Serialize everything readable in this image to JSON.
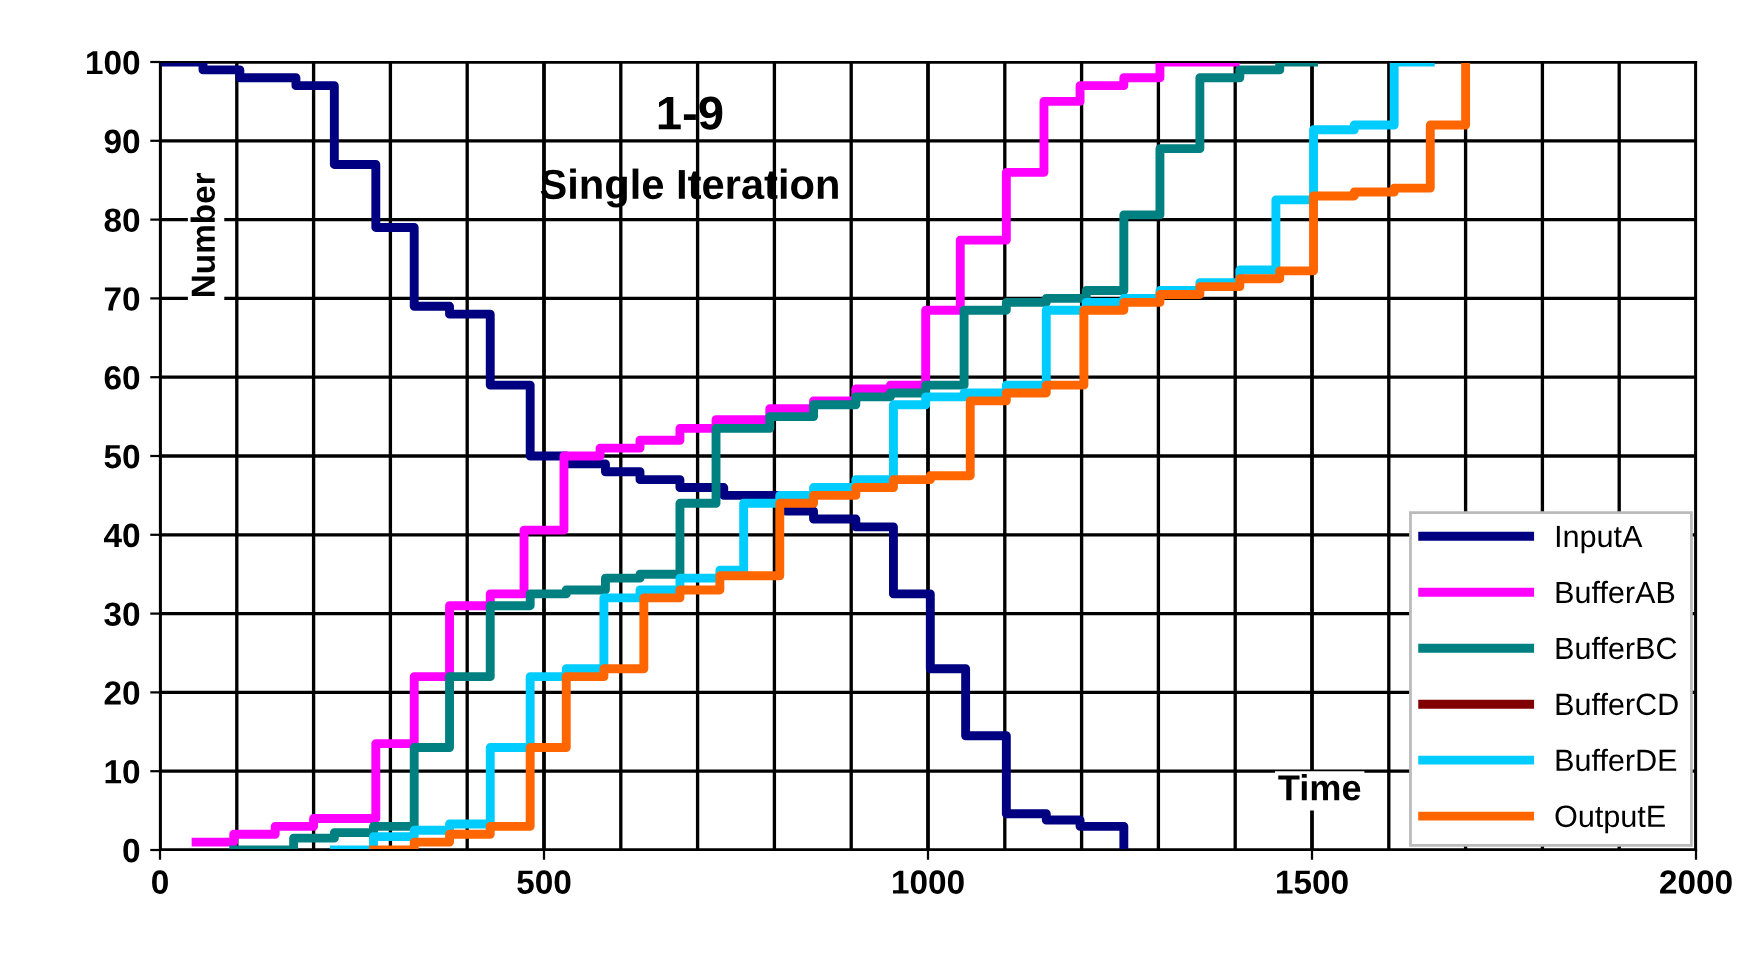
{
  "chart_data": {
    "type": "step",
    "title": "1-9",
    "subtitle": "Single Iteration",
    "xlabel": "Time",
    "ylabel": "Number",
    "xlim": [
      0,
      2000
    ],
    "xticks": [
      0,
      500,
      1000,
      1500,
      2000
    ],
    "ylim": [
      0,
      100
    ],
    "yticks": [
      0,
      10,
      20,
      30,
      40,
      50,
      60,
      70,
      80,
      90,
      100
    ],
    "grid": true,
    "legend": "bottom right",
    "marker": "none",
    "line_style": "solid",
    "series": [
      {
        "name": "InputA",
        "color": "#000080",
        "x": [
          0,
          56,
          104,
          177,
          227,
          281,
          331,
          377,
          430,
          482,
          529,
          580,
          625,
          677,
          734,
          815,
          851,
          906,
          955,
          1003,
          1049,
          1102,
          1154,
          1198,
          1255
        ],
        "values": [
          100,
          99,
          98,
          97,
          87,
          79,
          69,
          68,
          59,
          50,
          49,
          48,
          47,
          46,
          45,
          43,
          42,
          41,
          32.5,
          23,
          14.5,
          4.6,
          3.8,
          3,
          0
        ]
      },
      {
        "name": "BufferAB",
        "color": "#ff00ff",
        "x": [
          47,
          96,
          150,
          200,
          281,
          331,
          377,
          430,
          474,
          526,
          573,
          625,
          677,
          724,
          794,
          851,
          906,
          951,
          997,
          1042,
          1102,
          1151,
          1198,
          1255,
          1302,
          1400
        ],
        "values": [
          1,
          2,
          3,
          4,
          13.5,
          22,
          31,
          32.5,
          40.6,
          50,
          51,
          52,
          53.5,
          54.6,
          56,
          57,
          58.5,
          59,
          68.5,
          77.4,
          86,
          95,
          97,
          98,
          100,
          100
        ]
      },
      {
        "name": "BufferBC",
        "color": "#008080",
        "x": [
          96,
          174,
          227,
          278,
          331,
          377,
          430,
          482,
          529,
          580,
          625,
          677,
          724,
          794,
          851,
          906,
          951,
          997,
          1047,
          1102,
          1154,
          1206,
          1255,
          1302,
          1354,
          1406,
          1458,
          1502
        ],
        "values": [
          0,
          1.5,
          2.2,
          3,
          13,
          22,
          31,
          32.5,
          33,
          34.5,
          35,
          44,
          53.5,
          55,
          56.5,
          57.5,
          58,
          59,
          68.5,
          69.5,
          70,
          71,
          80.6,
          89,
          98,
          99,
          100,
          100
        ]
      },
      {
        "name": "BufferCD",
        "color": "#800000"
      },
      {
        "name": "BufferDE",
        "color": "#00ccff",
        "x": [
          227,
          278,
          331,
          377,
          430,
          482,
          529,
          578,
          625,
          677,
          729,
          760,
          807,
          851,
          906,
          955,
          997,
          1047,
          1102,
          1154,
          1206,
          1255,
          1302,
          1354,
          1406,
          1453,
          1502,
          1555,
          1607,
          1654
        ],
        "values": [
          0,
          1.7,
          2.5,
          3.3,
          13,
          22,
          23,
          32,
          33,
          34.5,
          35.5,
          44,
          45,
          46,
          47,
          56.5,
          57.5,
          58,
          59,
          68.5,
          69.5,
          70,
          71,
          72,
          73.6,
          82.5,
          91.4,
          92,
          100,
          100
        ]
      },
      {
        "name": "OutputE",
        "color": "#ff6600",
        "x": [
          278,
          331,
          377,
          430,
          482,
          529,
          578,
          630,
          677,
          729,
          807,
          851,
          906,
          955,
          1003,
          1055,
          1102,
          1154,
          1203,
          1255,
          1302,
          1354,
          1406,
          1458,
          1502,
          1555,
          1607,
          1654,
          1700
        ],
        "values": [
          0,
          1,
          2,
          3,
          13,
          22,
          23,
          32,
          33,
          34.8,
          44,
          45,
          46,
          47,
          47.5,
          57,
          58,
          59,
          68.5,
          69.5,
          70.5,
          71.5,
          72.5,
          73.5,
          83,
          83.5,
          84,
          92,
          100
        ]
      }
    ]
  }
}
